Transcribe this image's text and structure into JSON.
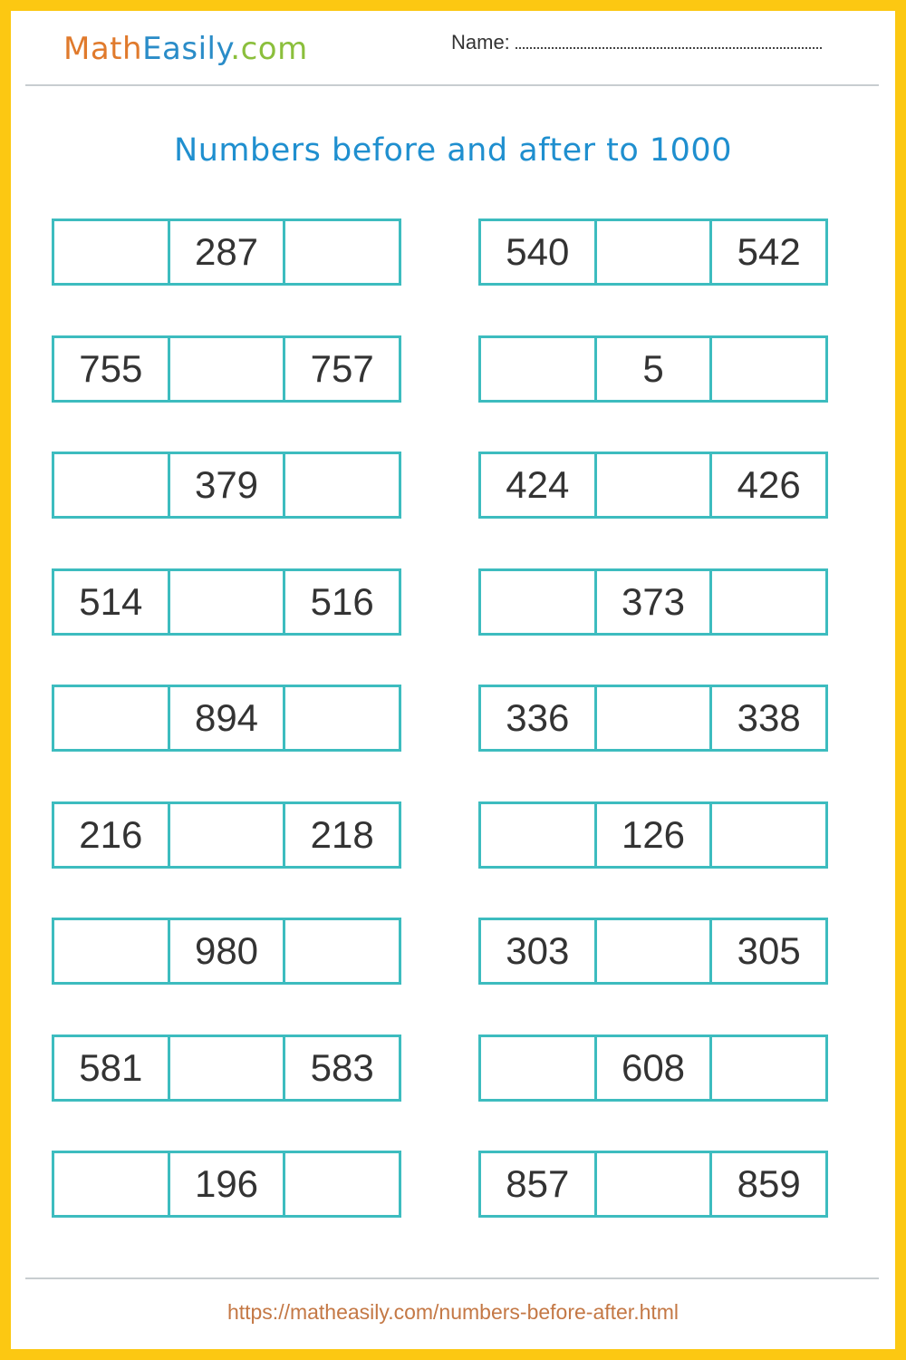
{
  "header": {
    "logo": {
      "part1": "Math",
      "part2": "Easily",
      "part3": ".com"
    },
    "name_label": "Name:"
  },
  "title": "Numbers before and after to 1000",
  "accent_colors": {
    "border": "#fcc812",
    "box": "#3dbcbf",
    "title": "#1f8fcf",
    "footer": "#c47845"
  },
  "rows": [
    {
      "left": [
        "",
        "287",
        ""
      ],
      "right": [
        "540",
        "",
        "542"
      ]
    },
    {
      "left": [
        "755",
        "",
        "757"
      ],
      "right": [
        "",
        "5",
        ""
      ]
    },
    {
      "left": [
        "",
        "379",
        ""
      ],
      "right": [
        "424",
        "",
        "426"
      ]
    },
    {
      "left": [
        "514",
        "",
        "516"
      ],
      "right": [
        "",
        "373",
        ""
      ]
    },
    {
      "left": [
        "",
        "894",
        ""
      ],
      "right": [
        "336",
        "",
        "338"
      ]
    },
    {
      "left": [
        "216",
        "",
        "218"
      ],
      "right": [
        "",
        "126",
        ""
      ]
    },
    {
      "left": [
        "",
        "980",
        ""
      ],
      "right": [
        "303",
        "",
        "305"
      ]
    },
    {
      "left": [
        "581",
        "",
        "583"
      ],
      "right": [
        "",
        "608",
        ""
      ]
    },
    {
      "left": [
        "",
        "196",
        ""
      ],
      "right": [
        "857",
        "",
        "859"
      ]
    }
  ],
  "footer": {
    "url": "https://matheasily.com/numbers-before-after.html"
  }
}
